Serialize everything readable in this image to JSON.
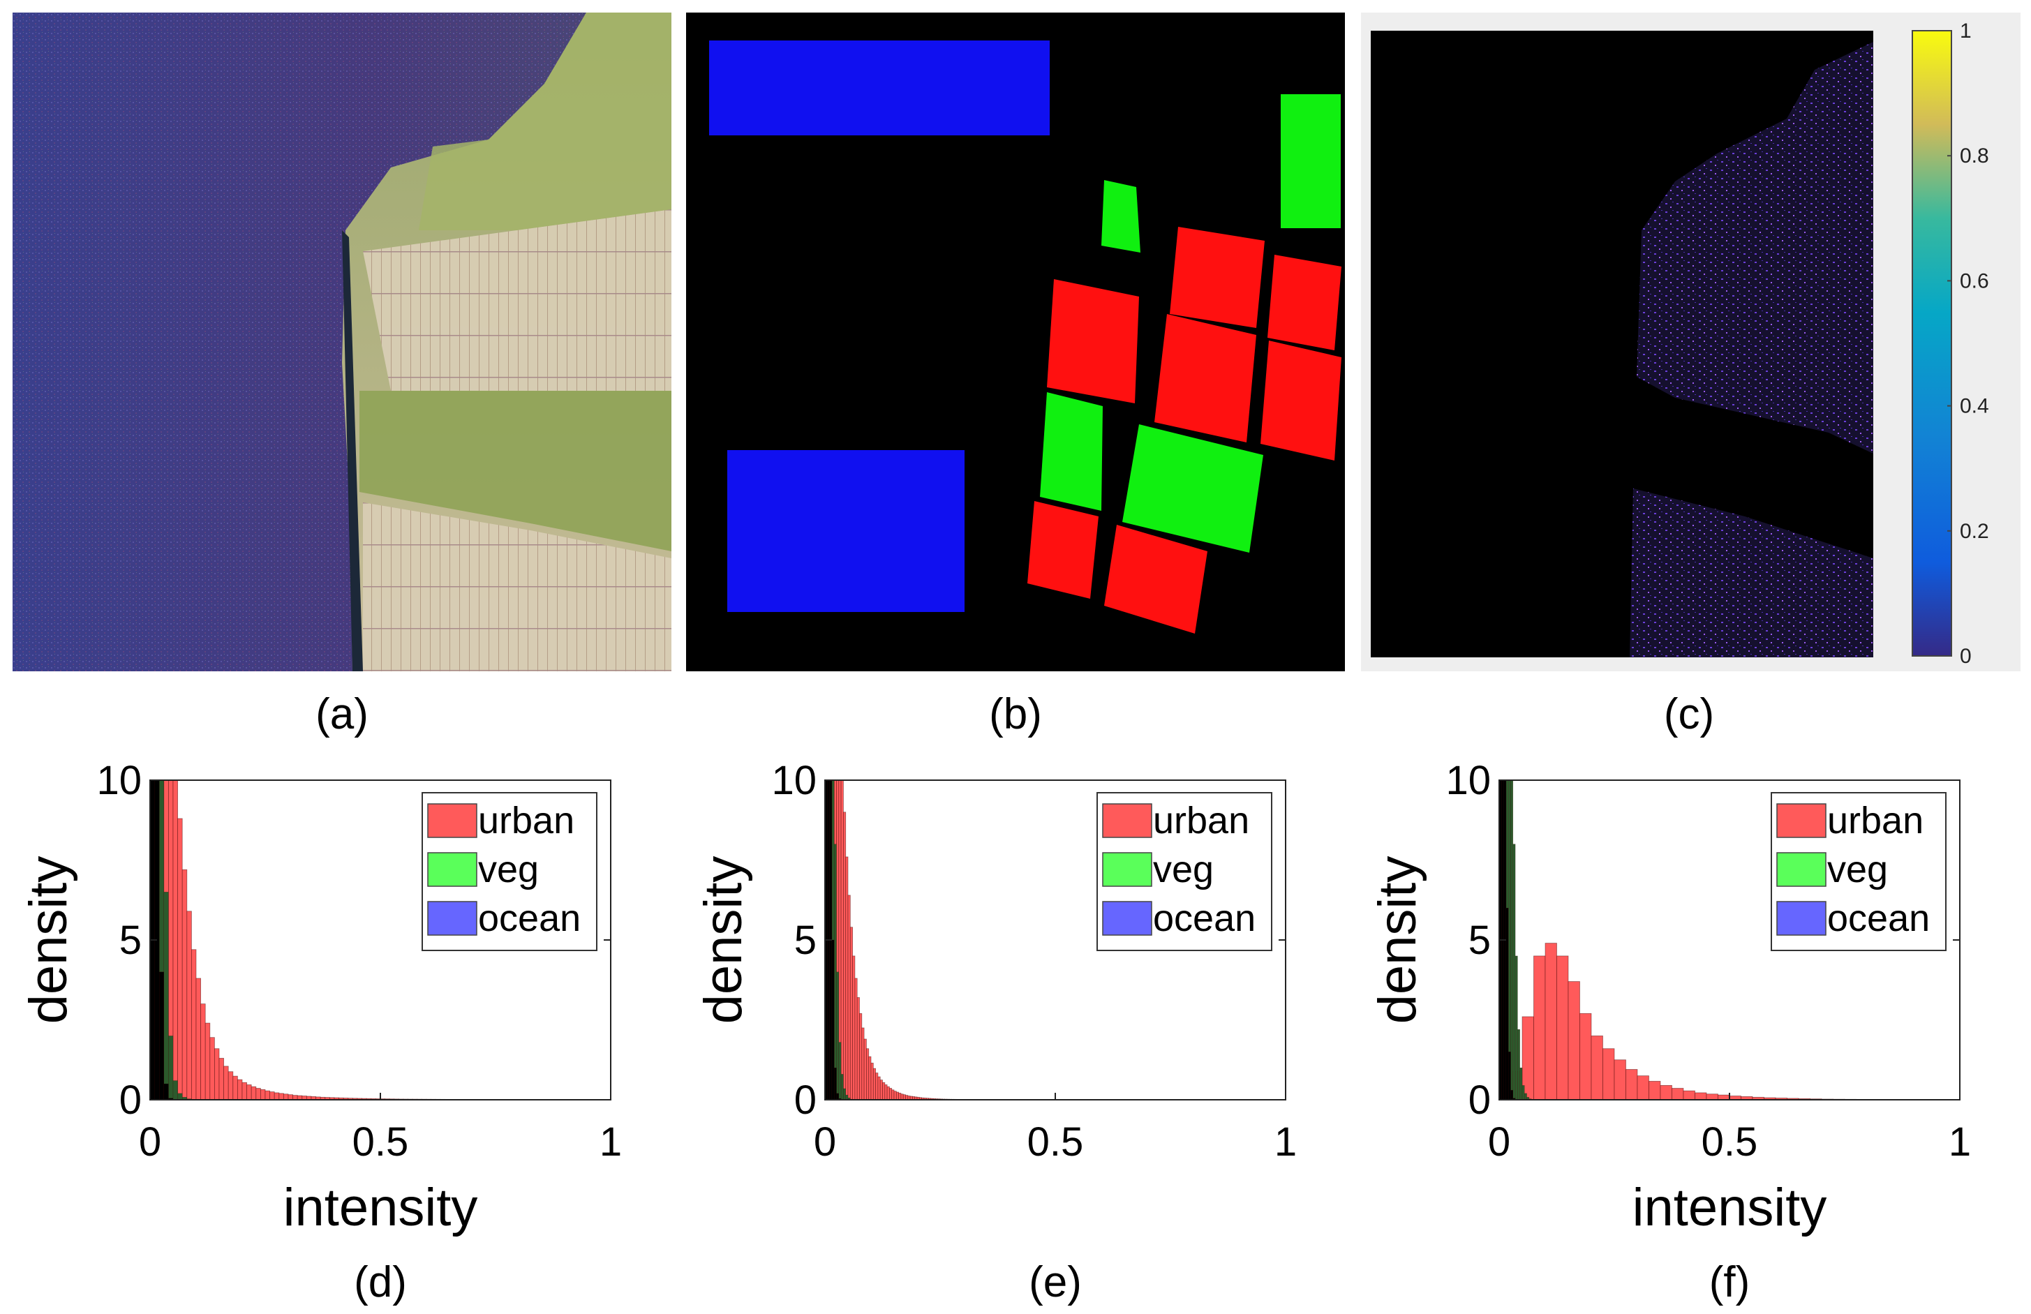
{
  "figure": {
    "colors": {
      "urban": "#ff5a5a",
      "veg": "#5aff5a",
      "ocean": "#6666ff",
      "black": "#000000",
      "mask_blue": "#1010f0",
      "mask_green": "#10f010",
      "mask_red": "#ff1010"
    },
    "panels": [
      {
        "id": "a",
        "label": "(a)",
        "kind": "sar-image"
      },
      {
        "id": "b",
        "label": "(b)",
        "kind": "class-mask"
      },
      {
        "id": "c",
        "label": "(c)",
        "kind": "heatmap",
        "colorbar_ticks": [
          "0",
          "0.2",
          "0.4",
          "0.6",
          "0.8",
          "1"
        ]
      }
    ]
  },
  "chart_data": [
    {
      "id": "d",
      "caption": "(d)",
      "type": "bar",
      "xlabel": "intensity",
      "ylabel": "density",
      "xlim": [
        0,
        1
      ],
      "ylim": [
        0,
        10
      ],
      "xticks": [
        "0",
        "0.5",
        "1"
      ],
      "yticks": [
        "0",
        "5",
        "10"
      ],
      "legend": {
        "position": "top-right",
        "entries": [
          "urban",
          "veg",
          "ocean"
        ]
      },
      "bin_width": 0.01,
      "series": [
        {
          "name": "urban",
          "values": [
            10,
            10,
            10,
            10,
            10,
            10,
            8.8,
            7.2,
            5.9,
            4.7,
            3.8,
            3.0,
            2.4,
            1.95,
            1.6,
            1.3,
            1.05,
            0.88,
            0.74,
            0.63,
            0.54,
            0.47,
            0.41,
            0.36,
            0.32,
            0.28,
            0.25,
            0.22,
            0.2,
            0.18,
            0.16,
            0.14,
            0.13,
            0.12,
            0.11,
            0.1,
            0.09,
            0.08,
            0.075,
            0.07,
            0.065,
            0.06,
            0.055,
            0.05,
            0.047,
            0.044,
            0.041,
            0.038,
            0.035,
            0.033,
            0.031,
            0.029,
            0.027,
            0.025,
            0.023,
            0.022,
            0.021,
            0.02,
            0.019,
            0.018,
            0.017,
            0.016,
            0.015,
            0.014,
            0.013,
            0.012,
            0.012,
            0.011,
            0.011,
            0.01,
            0.01,
            0.009,
            0.009,
            0.008,
            0.008,
            0.008,
            0.007,
            0.007,
            0.007,
            0.006,
            0.006,
            0.006,
            0.005,
            0.005,
            0.005,
            0.005,
            0.004,
            0.004,
            0.004,
            0.004,
            0.004,
            0.003,
            0.003,
            0.003,
            0.003,
            0.003,
            0.003,
            0.002,
            0.002,
            0.002
          ]
        },
        {
          "name": "veg",
          "values": [
            10,
            10,
            10,
            6.5,
            2.0,
            0.6,
            0.2,
            0.08,
            0.03,
            0.01
          ]
        },
        {
          "name": "ocean",
          "values": [
            10,
            10,
            4.0,
            0.5,
            0.05,
            0.01
          ]
        }
      ]
    },
    {
      "id": "e",
      "caption": "(e)",
      "type": "bar",
      "xlabel": "",
      "ylabel": "density",
      "xlim": [
        0,
        1
      ],
      "ylim": [
        0,
        10
      ],
      "xticks": [
        "0",
        "0.5",
        "1"
      ],
      "yticks": [
        "0",
        "5",
        "10"
      ],
      "legend": {
        "position": "top-right",
        "entries": [
          "urban",
          "veg",
          "ocean"
        ]
      },
      "bin_width": 0.005,
      "series": [
        {
          "name": "urban",
          "values": [
            10,
            10,
            10,
            10,
            10,
            10,
            10,
            10,
            9.0,
            7.6,
            6.4,
            5.4,
            4.5,
            3.8,
            3.2,
            2.7,
            2.25,
            1.9,
            1.6,
            1.35,
            1.15,
            0.98,
            0.84,
            0.72,
            0.62,
            0.54,
            0.47,
            0.41,
            0.36,
            0.31,
            0.27,
            0.24,
            0.21,
            0.18,
            0.16,
            0.14,
            0.12,
            0.11,
            0.1,
            0.09,
            0.08,
            0.07,
            0.06,
            0.055,
            0.05,
            0.045,
            0.04,
            0.035,
            0.03,
            0.028,
            0.025,
            0.022,
            0.02,
            0.018,
            0.016,
            0.015,
            0.014,
            0.013,
            0.012,
            0.011,
            0.01
          ]
        },
        {
          "name": "veg",
          "values": [
            10,
            10,
            10,
            10,
            8.0,
            4.0,
            1.8,
            0.8,
            0.35,
            0.15,
            0.06,
            0.02
          ]
        },
        {
          "name": "ocean",
          "values": [
            10,
            10,
            10,
            5.0,
            1.0,
            0.2,
            0.04
          ]
        }
      ]
    },
    {
      "id": "f",
      "caption": "(f)",
      "type": "bar",
      "xlabel": "intensity",
      "ylabel": "density",
      "xlim": [
        0,
        1
      ],
      "ylim": [
        0,
        10
      ],
      "xticks": [
        "0",
        "0.5",
        "1"
      ],
      "yticks": [
        "0",
        "5",
        "10"
      ],
      "legend": {
        "position": "top-right",
        "entries": [
          "urban",
          "veg",
          "ocean"
        ]
      },
      "bin_width": 0.025,
      "urban_start": 0.025,
      "series": [
        {
          "name": "urban",
          "values": [
            0.9,
            2.6,
            4.5,
            4.9,
            4.5,
            3.7,
            2.7,
            2.0,
            1.6,
            1.25,
            0.95,
            0.75,
            0.58,
            0.45,
            0.36,
            0.28,
            0.22,
            0.18,
            0.15,
            0.12,
            0.1,
            0.08,
            0.065,
            0.055,
            0.045,
            0.035,
            0.028,
            0.022,
            0.018,
            0.015,
            0.012,
            0.01,
            0.008,
            0.007,
            0.006,
            0.005,
            0.004,
            0.003,
            0.002
          ]
        },
        {
          "name": "veg",
          "bin_width": 0.005,
          "values": [
            10,
            10,
            10,
            10,
            10,
            10,
            8.0,
            4.5,
            2.2,
            1.0,
            0.45,
            0.2,
            0.08,
            0.03
          ]
        },
        {
          "name": "ocean",
          "bin_width": 0.005,
          "values": [
            10,
            10,
            10,
            6.0,
            1.5,
            0.3,
            0.05
          ]
        }
      ]
    }
  ]
}
